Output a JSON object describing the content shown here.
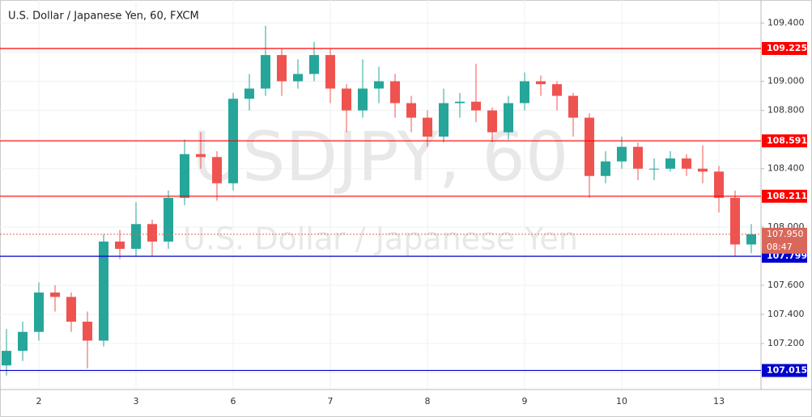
{
  "chart_data": {
    "type": "candlestick",
    "title": "U.S. Dollar / Japanese Yen, 60, FXCM",
    "watermark": "USDJPY, 60",
    "watermark_subtitle": "U.S. Dollar / Japanese Yen",
    "categories": [
      null,
      null,
      "2",
      null,
      null,
      null,
      null,
      null,
      "3",
      null,
      null,
      null,
      null,
      null,
      "6",
      null,
      null,
      null,
      null,
      null,
      "7",
      null,
      null,
      null,
      null,
      null,
      "8",
      null,
      null,
      null,
      null,
      null,
      "9",
      null,
      null,
      null,
      null,
      null,
      "10",
      null,
      null,
      null,
      null,
      null,
      "13",
      null,
      null
    ],
    "open": [
      107.05,
      107.15,
      107.28,
      107.55,
      107.52,
      107.35,
      107.22,
      107.9,
      107.85,
      108.02,
      107.9,
      108.2,
      108.5,
      108.48,
      108.3,
      108.88,
      108.95,
      109.18,
      109.0,
      109.05,
      109.18,
      108.95,
      108.8,
      108.95,
      109.0,
      108.85,
      108.75,
      108.62,
      108.85,
      108.86,
      108.8,
      108.65,
      108.85,
      109.0,
      108.98,
      108.9,
      108.75,
      108.35,
      108.45,
      108.55,
      108.4,
      108.4,
      108.47,
      108.4,
      108.38,
      108.2,
      107.88
    ],
    "high": [
      107.3,
      107.35,
      107.62,
      107.6,
      107.55,
      107.42,
      107.95,
      107.98,
      108.17,
      108.05,
      108.25,
      108.6,
      108.65,
      108.52,
      108.92,
      109.05,
      109.38,
      109.22,
      109.15,
      109.27,
      109.22,
      108.98,
      109.15,
      109.1,
      109.05,
      108.9,
      108.8,
      108.95,
      108.92,
      109.12,
      108.82,
      108.9,
      109.06,
      109.04,
      109.0,
      108.92,
      108.78,
      108.52,
      108.62,
      108.58,
      108.47,
      108.52,
      108.5,
      108.56,
      108.42,
      108.25,
      108.02
    ],
    "low": [
      106.98,
      107.08,
      107.22,
      107.42,
      107.28,
      107.03,
      107.18,
      107.78,
      107.8,
      107.8,
      107.85,
      108.15,
      108.4,
      108.18,
      108.25,
      108.8,
      108.9,
      108.9,
      108.95,
      109.0,
      108.85,
      108.65,
      108.75,
      108.85,
      108.75,
      108.65,
      108.55,
      108.58,
      108.75,
      108.72,
      108.58,
      108.6,
      108.8,
      108.9,
      108.8,
      108.62,
      108.2,
      108.3,
      108.4,
      108.32,
      108.32,
      108.38,
      108.35,
      108.3,
      108.1,
      107.8,
      107.82
    ],
    "close": [
      107.15,
      107.28,
      107.55,
      107.52,
      107.35,
      107.22,
      107.9,
      107.85,
      108.02,
      107.9,
      108.2,
      108.5,
      108.48,
      108.3,
      108.88,
      108.95,
      109.18,
      109.0,
      109.05,
      109.18,
      108.95,
      108.8,
      108.95,
      109.0,
      108.85,
      108.75,
      108.62,
      108.85,
      108.86,
      108.8,
      108.65,
      108.85,
      109.0,
      108.98,
      108.9,
      108.75,
      108.35,
      108.45,
      108.55,
      108.4,
      108.4,
      108.47,
      108.4,
      108.38,
      108.2,
      107.88,
      107.95
    ],
    "up_color": "#26a69a",
    "down_color": "#ef5350",
    "ylim": [
      106.89,
      109.53
    ],
    "yticks": [
      {
        "value": 107.0,
        "label": "107.000"
      },
      {
        "value": 107.2,
        "label": "107.200"
      },
      {
        "value": 107.4,
        "label": "107.400"
      },
      {
        "value": 107.6,
        "label": "107.600"
      },
      {
        "value": 107.8,
        "label": "107.800"
      },
      {
        "value": 108.0,
        "label": "108.000"
      },
      {
        "value": 108.2,
        "label": "108.200"
      },
      {
        "value": 108.4,
        "label": "108.400"
      },
      {
        "value": 108.6,
        "label": "108.600"
      },
      {
        "value": 108.8,
        "label": "108.800"
      },
      {
        "value": 109.0,
        "label": "109.000"
      },
      {
        "value": 109.2,
        "label": "109.200"
      },
      {
        "value": 109.4,
        "label": "109.400"
      }
    ],
    "grid": true,
    "levels": [
      {
        "value": 109.225,
        "label": "109.225",
        "color": "#ff0000"
      },
      {
        "value": 108.591,
        "label": "108.591",
        "color": "#ff0000"
      },
      {
        "value": 108.211,
        "label": "108.211",
        "color": "#ff0000"
      },
      {
        "value": 107.799,
        "label": "107.799",
        "color": "#0000cc"
      },
      {
        "value": 107.015,
        "label": "107.015",
        "color": "#0000cc"
      }
    ],
    "current_price": {
      "value": 107.95,
      "label": "107.950",
      "countdown": "08:47",
      "color": "#d9685a"
    }
  }
}
